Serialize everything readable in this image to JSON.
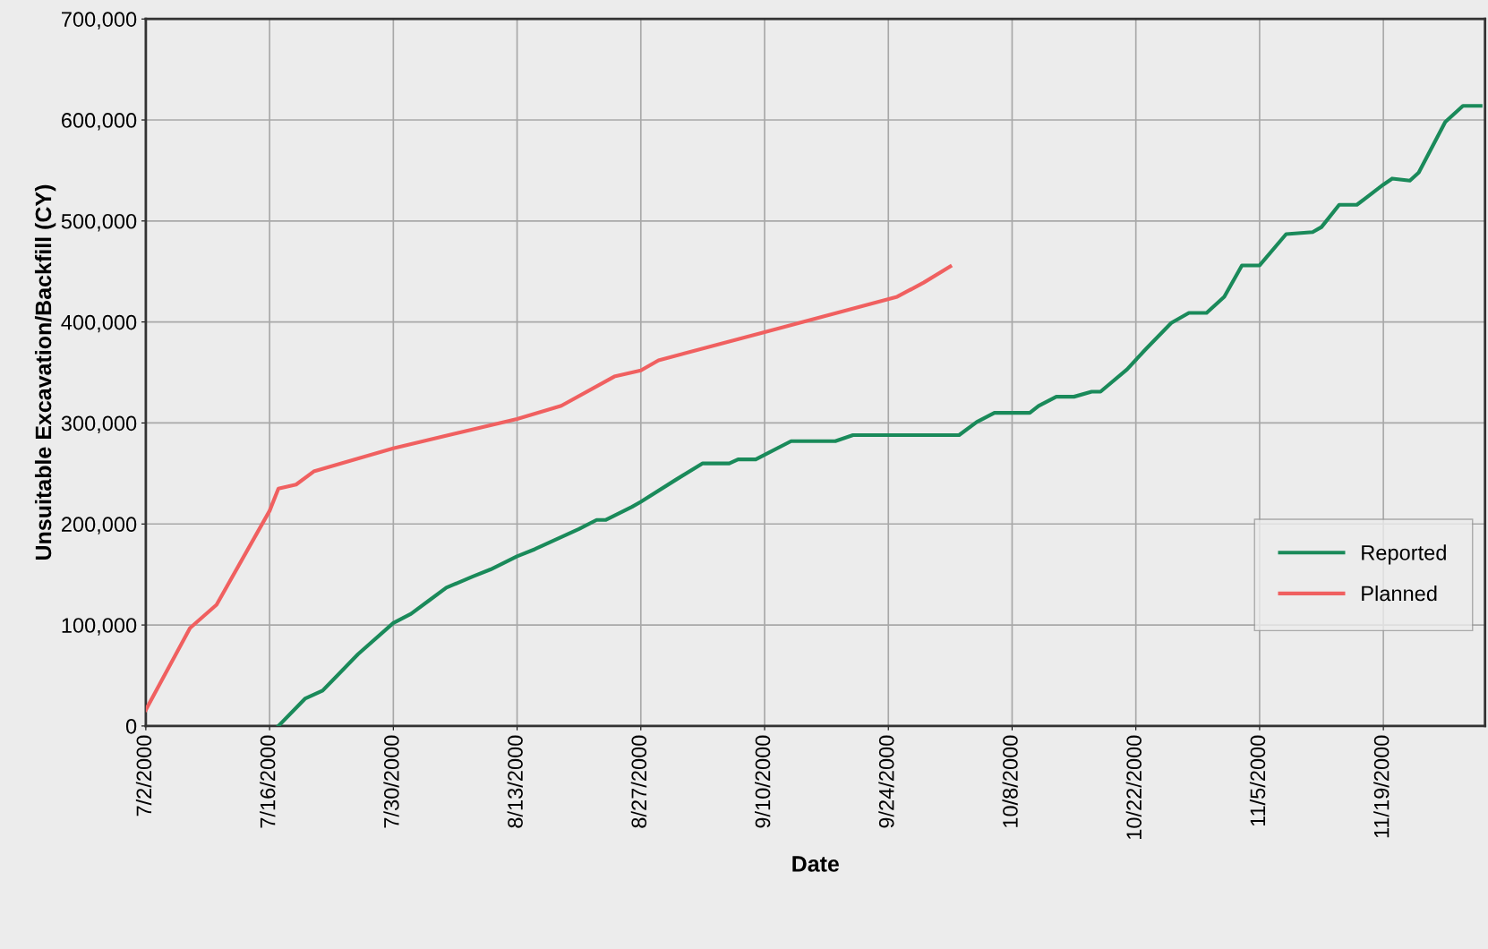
{
  "chart_data": {
    "type": "line",
    "xlabel": "Date",
    "ylabel": "Unsuitable Excavation/Backfill (CY)",
    "xlim": [
      "2000-07-02",
      "2000-11-30T12:00"
    ],
    "xticks": [
      {
        "value": "2000-07-02",
        "label": "7/2/2000"
      },
      {
        "value": "2000-07-16",
        "label": "7/16/2000"
      },
      {
        "value": "2000-07-30",
        "label": "7/30/2000"
      },
      {
        "value": "2000-08-13",
        "label": "8/13/2000"
      },
      {
        "value": "2000-08-27",
        "label": "8/27/2000"
      },
      {
        "value": "2000-09-10",
        "label": "9/10/2000"
      },
      {
        "value": "2000-09-24",
        "label": "9/24/2000"
      },
      {
        "value": "2000-10-08",
        "label": "10/8/2000"
      },
      {
        "value": "2000-10-22",
        "label": "10/22/2000"
      },
      {
        "value": "2000-11-05",
        "label": "11/5/2000"
      },
      {
        "value": "2000-11-19",
        "label": "11/19/2000"
      }
    ],
    "ylim": [
      0,
      700000
    ],
    "yticks": [
      {
        "value": 0,
        "label": "0"
      },
      {
        "value": 100000,
        "label": "100,000"
      },
      {
        "value": 200000,
        "label": "200,000"
      },
      {
        "value": 300000,
        "label": "300,000"
      },
      {
        "value": 400000,
        "label": "400,000"
      },
      {
        "value": 500000,
        "label": "500,000"
      },
      {
        "value": 600000,
        "label": "600,000"
      },
      {
        "value": 700000,
        "label": "700,000"
      }
    ],
    "grid": true,
    "legend": "bottom right",
    "marker": "none",
    "line_style": "solid",
    "series": [
      {
        "name": "Reported",
        "color": "#1a8a5a",
        "x": [
          "2000-07-17",
          "2000-07-20",
          "2000-07-22",
          "2000-07-26",
          "2000-07-30",
          "2000-08-01",
          "2000-08-03",
          "2000-08-05",
          "2000-08-08",
          "2000-08-10",
          "2000-08-13",
          "2000-08-15",
          "2000-08-20",
          "2000-08-22",
          "2000-08-23",
          "2000-08-26",
          "2000-08-27",
          "2000-08-31",
          "2000-09-03",
          "2000-09-06",
          "2000-09-07",
          "2000-09-09",
          "2000-09-13",
          "2000-09-18",
          "2000-09-20",
          "2000-10-02",
          "2000-10-04",
          "2000-10-06",
          "2000-10-10",
          "2000-10-11",
          "2000-10-13",
          "2000-10-15",
          "2000-10-17",
          "2000-10-18",
          "2000-10-21",
          "2000-10-23",
          "2000-10-26",
          "2000-10-28",
          "2000-10-30",
          "2000-11-01",
          "2000-11-03",
          "2000-11-05",
          "2000-11-08",
          "2000-11-11",
          "2000-11-12",
          "2000-11-14",
          "2000-11-16",
          "2000-11-19",
          "2000-11-20",
          "2000-11-22",
          "2000-11-23",
          "2000-11-26",
          "2000-11-28",
          "2000-11-30"
        ],
        "values": [
          0,
          27000,
          35000,
          71000,
          102000,
          111000,
          124000,
          137000,
          148000,
          155000,
          168000,
          175000,
          195000,
          204000,
          204000,
          217000,
          222000,
          244000,
          260000,
          260000,
          264000,
          264000,
          282000,
          282000,
          288000,
          288000,
          301000,
          310000,
          310000,
          317000,
          326000,
          326000,
          331000,
          331000,
          353000,
          372000,
          399000,
          409000,
          409000,
          425000,
          456000,
          456000,
          487000,
          489000,
          494000,
          516000,
          516000,
          536000,
          542000,
          540000,
          548000,
          598000,
          614000,
          614000
        ]
      },
      {
        "name": "Planned",
        "color": "#f06060",
        "x": [
          "2000-07-02",
          "2000-07-07",
          "2000-07-10",
          "2000-07-16",
          "2000-07-17",
          "2000-07-19",
          "2000-07-21",
          "2000-07-30",
          "2000-08-13",
          "2000-08-18",
          "2000-08-24",
          "2000-08-27",
          "2000-08-29",
          "2000-09-10",
          "2000-09-25",
          "2000-09-28",
          "2000-10-01"
        ],
        "values": [
          16000,
          97000,
          120000,
          213000,
          235000,
          239000,
          252000,
          275000,
          304000,
          317000,
          346000,
          352000,
          362000,
          390000,
          425000,
          439000,
          455000
        ]
      }
    ]
  }
}
